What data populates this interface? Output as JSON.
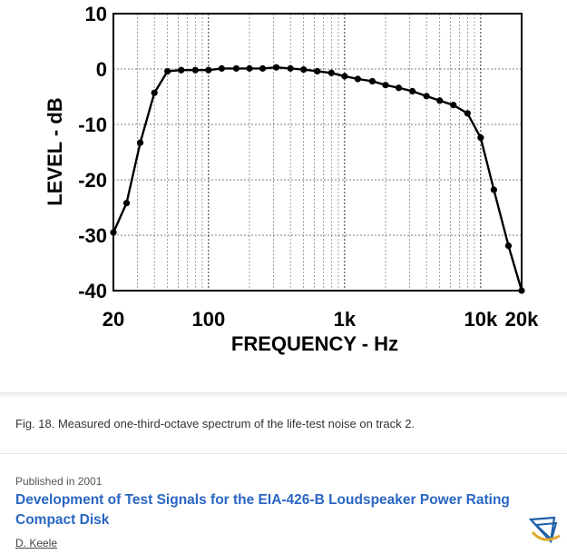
{
  "chart_data": {
    "type": "line",
    "title": "",
    "xlabel": "FREQUENCY - Hz",
    "ylabel": "LEVEL - dB",
    "x_scale": "log",
    "xlim": [
      20,
      20000
    ],
    "ylim": [
      -40,
      10
    ],
    "grid": true,
    "x_tick_labels": [
      {
        "value": 20,
        "label": "20"
      },
      {
        "value": 100,
        "label": "100"
      },
      {
        "value": 1000,
        "label": "1k"
      },
      {
        "value": 10000,
        "label": "10k"
      },
      {
        "value": 20000,
        "label": "20k"
      }
    ],
    "y_ticks": [
      10,
      0,
      -10,
      -20,
      -30,
      -40
    ],
    "series": [
      {
        "x": [
          20,
          25,
          31.5,
          40,
          50,
          63,
          80,
          100,
          125,
          160,
          200,
          250,
          315,
          400,
          500,
          630,
          800,
          1000,
          1250,
          1600,
          2000,
          2500,
          3150,
          4000,
          5000,
          6300,
          8000,
          10000,
          12500,
          16000,
          20000
        ],
        "y": [
          -29.5,
          -24.2,
          -13.3,
          -4.3,
          -0.4,
          -0.2,
          -0.2,
          -0.2,
          0.1,
          0.1,
          0.1,
          0.1,
          0.3,
          0.1,
          -0.1,
          -0.4,
          -0.7,
          -1.3,
          -1.8,
          -2.2,
          -2.9,
          -3.4,
          -4.0,
          -4.9,
          -5.7,
          -6.5,
          -8.0,
          -12.4,
          -21.8,
          -31.9,
          -40.0
        ]
      }
    ]
  },
  "caption": "Fig. 18. Measured one-third-octave spectrum of the life-test noise on track 2.",
  "published": "Published in 2001",
  "article_title": "Development of Test Signals for the EIA-426-B Loudspeaker Power Rating Compact Disk",
  "author": "D. Keele",
  "colors": {
    "link": "#2a66c2",
    "logo_blue": "#1f5fa8",
    "logo_gold": "#e3a72f"
  }
}
